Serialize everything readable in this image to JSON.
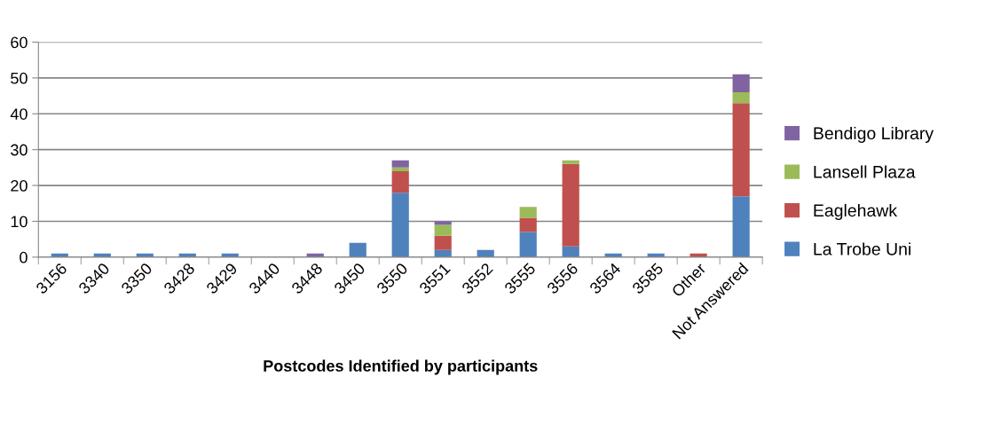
{
  "chart_data": {
    "type": "bar",
    "stacked": true,
    "xlabel": "Postcodes Identified by participants",
    "categories": [
      "3156",
      "3340",
      "3350",
      "3428",
      "3429",
      "3440",
      "3448",
      "3450",
      "3550",
      "3551",
      "3552",
      "3555",
      "3556",
      "3564",
      "3585",
      "Other",
      "Not Answered"
    ],
    "series": [
      {
        "name": "La Trobe Uni",
        "color": "#4f81bd",
        "values": [
          1,
          1,
          1,
          1,
          1,
          0,
          0,
          4,
          18,
          2,
          2,
          7,
          3,
          1,
          1,
          0,
          17
        ]
      },
      {
        "name": "Eaglehawk",
        "color": "#c0504d",
        "values": [
          0,
          0,
          0,
          0,
          0,
          0,
          0,
          0,
          6,
          4,
          0,
          4,
          23,
          0,
          0,
          1,
          26
        ]
      },
      {
        "name": "Lansell Plaza",
        "color": "#9bbb59",
        "values": [
          0,
          0,
          0,
          0,
          0,
          0,
          0,
          0,
          1,
          3,
          0,
          3,
          1,
          0,
          0,
          0,
          3
        ]
      },
      {
        "name": "Bendigo Library",
        "color": "#8064a2",
        "values": [
          0,
          0,
          0,
          0,
          0,
          0,
          1,
          0,
          2,
          1,
          0,
          0,
          0,
          0,
          0,
          0,
          5
        ]
      }
    ],
    "ylim": [
      0,
      60
    ],
    "yticks": [
      0,
      10,
      20,
      30,
      40,
      50,
      60
    ],
    "grid": "y",
    "legend": "right"
  }
}
